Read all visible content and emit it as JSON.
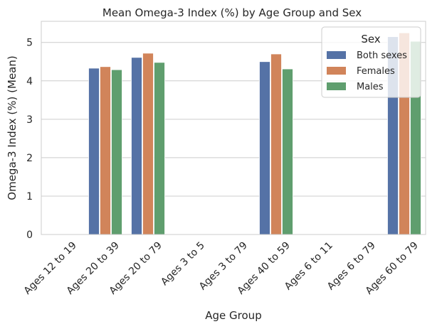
{
  "chart_data": {
    "type": "bar",
    "title": "Mean Omega-3 Index (%) by Age Group and Sex",
    "xlabel": "Age Group",
    "ylabel": "Omega-3 Index (%) (Mean)",
    "categories": [
      "Ages 12 to 19",
      "Ages 20 to 39",
      "Ages 20 to 79",
      "Ages 3 to 5",
      "Ages 3 to 79",
      "Ages 40 to 59",
      "Ages 6 to 11",
      "Ages 6 to 79",
      "Ages 60 to 79"
    ],
    "series": [
      {
        "name": "Both sexes",
        "color": "#5572a6",
        "values": [
          null,
          4.33,
          4.61,
          null,
          null,
          4.5,
          null,
          null,
          5.15
        ]
      },
      {
        "name": "Females",
        "color": "#d1845a",
        "values": [
          null,
          4.37,
          4.72,
          null,
          null,
          4.7,
          null,
          null,
          5.25
        ]
      },
      {
        "name": "Males",
        "color": "#5f9e6e",
        "values": [
          null,
          4.29,
          4.48,
          null,
          null,
          4.31,
          null,
          null,
          5.03
        ]
      }
    ],
    "ylim": [
      0,
      5.55
    ],
    "yticks": [
      0,
      1,
      2,
      3,
      4,
      5
    ],
    "grid": "y",
    "legend": {
      "title": "Sex",
      "placement": "top-right"
    }
  }
}
